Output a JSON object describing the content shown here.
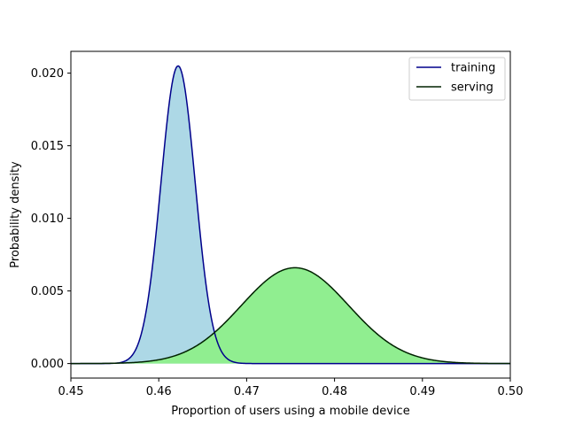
{
  "chart_data": {
    "type": "area",
    "title": "",
    "xlabel": "Proportion of users using a mobile device",
    "ylabel": "Probability density",
    "xlim": [
      0.45,
      0.5
    ],
    "ylim": [
      -0.001,
      0.0215
    ],
    "x_ticks": [
      0.45,
      0.46,
      0.47,
      0.48,
      0.49,
      0.5
    ],
    "x_tick_labels": [
      "0.45",
      "0.46",
      "0.47",
      "0.48",
      "0.49",
      "0.50"
    ],
    "y_ticks": [
      0.0,
      0.005,
      0.01,
      0.015,
      0.02
    ],
    "y_tick_labels": [
      "0.000",
      "0.005",
      "0.010",
      "0.015",
      "0.020"
    ],
    "grid": false,
    "legend_position": "top-right",
    "series": [
      {
        "name": "training",
        "distribution": "normal",
        "mean": 0.4622,
        "std": 0.00195,
        "peak": 0.0205,
        "line_color": "#00008b",
        "fill_color": "#add8e6"
      },
      {
        "name": "serving",
        "distribution": "normal",
        "mean": 0.4755,
        "std": 0.0061,
        "peak": 0.0066,
        "line_color": "#002200",
        "fill_color": "#90ee90"
      }
    ]
  }
}
